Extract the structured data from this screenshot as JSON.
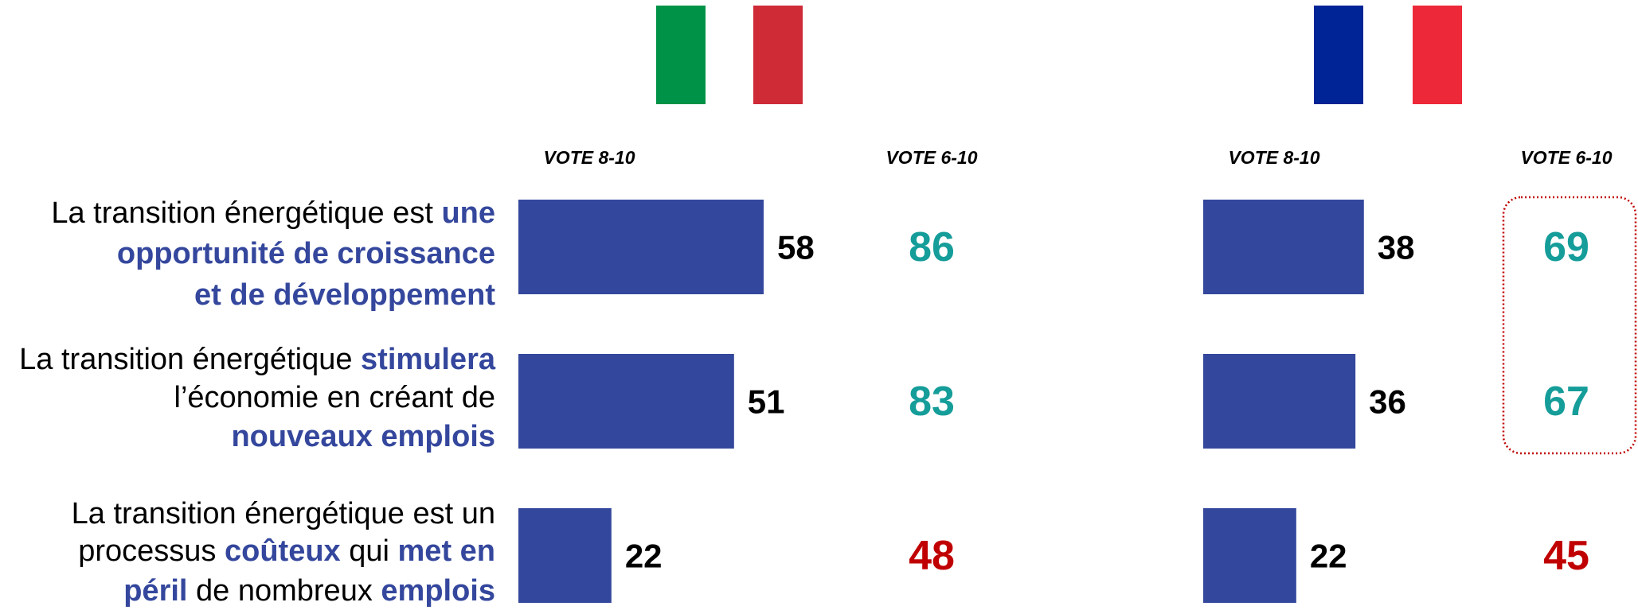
{
  "chart_data": {
    "type": "bar",
    "orientation": "horizontal",
    "categories": [
      [
        [
          {
            "text": "La transition énergétique est ",
            "emphasis": false
          },
          {
            "text": "une",
            "emphasis": true
          }
        ],
        [
          {
            "text": "opportunité de croissance",
            "emphasis": true
          }
        ],
        [
          {
            "text": "et de développement",
            "emphasis": true
          }
        ]
      ],
      [
        [
          {
            "text": "La transition énergétique ",
            "emphasis": false
          },
          {
            "text": "stimulera",
            "emphasis": true
          }
        ],
        [
          {
            "text": "l’économie en créant de",
            "emphasis": false
          }
        ],
        [
          {
            "text": "nouveaux emplois",
            "emphasis": true
          }
        ]
      ],
      [
        [
          {
            "text": "La transition énergétique est un",
            "emphasis": false
          }
        ],
        [
          {
            "text": "processus ",
            "emphasis": false
          },
          {
            "text": "coûteux",
            "emphasis": true
          },
          {
            "text": " qui ",
            "emphasis": false
          },
          {
            "text": "met en",
            "emphasis": true
          }
        ],
        [
          {
            "text": "péril",
            "emphasis": true
          },
          {
            "text": " de nombreux ",
            "emphasis": false
          },
          {
            "text": "emplois",
            "emphasis": true
          }
        ]
      ]
    ],
    "emphasis_color": "#34479d",
    "xlim": [
      0,
      100
    ],
    "panels": [
      {
        "series": [
          {
            "name": "VOTE 8-10",
            "color": "#33479c",
            "values": [
              58,
              51,
              22
            ]
          },
          {
            "name": "VOTE 6-10",
            "values": [
              86,
              83,
              48
            ],
            "value_colors": [
              "#159d9a",
              "#159d9a",
              "#c00000"
            ]
          }
        ]
      },
      {
        "series": [
          {
            "name": "VOTE 8-10",
            "color": "#33479c",
            "values": [
              38,
              36,
              22
            ]
          },
          {
            "name": "VOTE 6-10",
            "values": [
              69,
              67,
              45
            ],
            "value_colors": [
              "#159d9a",
              "#159d9a",
              "#c00000"
            ]
          }
        ]
      }
    ]
  }
}
